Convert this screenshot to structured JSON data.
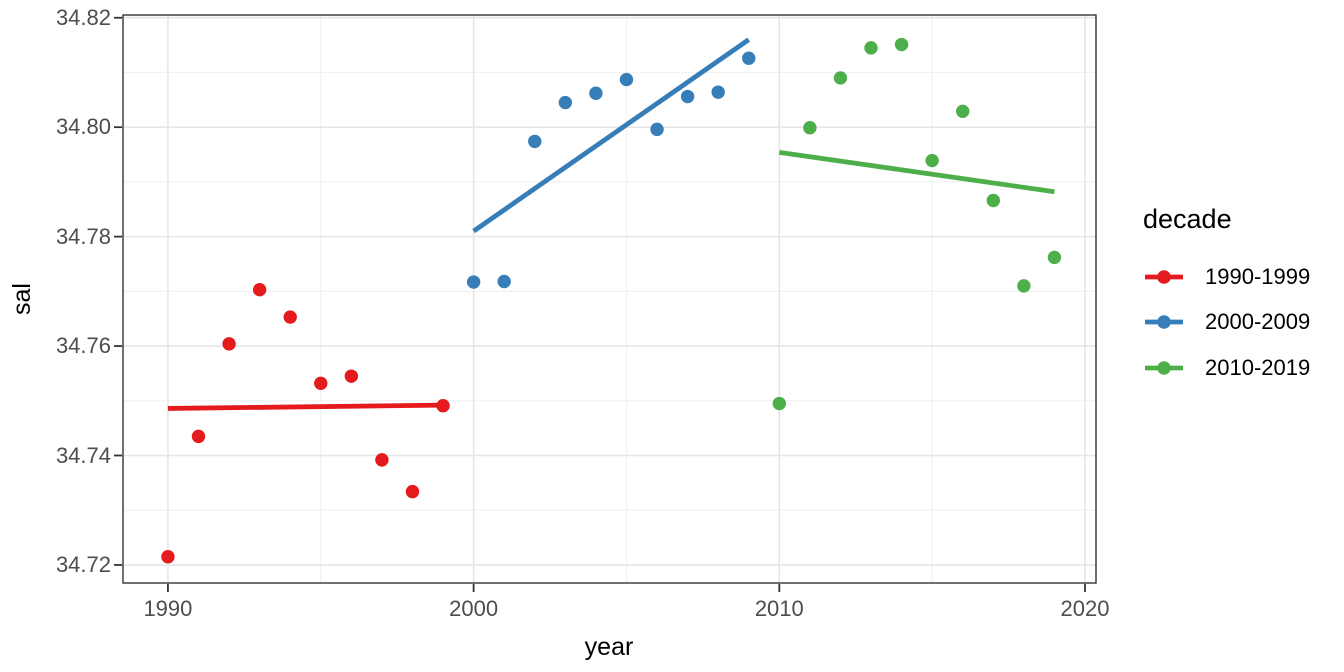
{
  "background": "#ffffff",
  "colors": {
    "axis_text": "#4d4d4d",
    "axis_title": "#000000",
    "grid_major": "#e6e6e6",
    "grid_minor": "#f2f2f2",
    "panel_border": "#343434",
    "tick_mark": "#333333",
    "series_red": "#E41A1C",
    "series_blue": "#377EB8",
    "series_green": "#4DAF4A"
  },
  "chart_data": {
    "type": "scatter",
    "title": "",
    "xlabel": "year",
    "ylabel": "sal",
    "legend_title": "decade",
    "legend_position": "right",
    "grid": true,
    "xlim": [
      1988.53,
      2020.36
    ],
    "ylim": [
      34.7167,
      34.8205
    ],
    "x_ticks": {
      "values": [
        1990,
        2000,
        2010,
        2020
      ],
      "labels": [
        "1990",
        "2000",
        "2010",
        "2020"
      ]
    },
    "y_ticks": {
      "values": [
        34.72,
        34.74,
        34.76,
        34.78,
        34.8,
        34.82
      ],
      "labels": [
        "34.72",
        "34.74",
        "34.76",
        "34.78",
        "34.80",
        "34.82"
      ]
    },
    "x_minor": [
      1995,
      2005,
      2015
    ],
    "y_minor": [
      34.73,
      34.75,
      34.77,
      34.79,
      34.81
    ],
    "series": [
      {
        "name": "1990-1999",
        "color": "#E41A1C",
        "x": [
          1990,
          1991,
          1992,
          1993,
          1994,
          1995,
          1996,
          1997,
          1998,
          1999
        ],
        "y": [
          34.7215,
          34.7435,
          34.7604,
          34.7703,
          34.7653,
          34.7532,
          34.7545,
          34.7392,
          34.7334,
          34.7491
        ],
        "trend": {
          "x1": 1990,
          "y1": 34.7486,
          "x2": 1999,
          "y2": 34.7492
        }
      },
      {
        "name": "2000-2009",
        "color": "#377EB8",
        "x": [
          2000,
          2001,
          2002,
          2003,
          2004,
          2005,
          2006,
          2007,
          2008,
          2009
        ],
        "y": [
          34.7717,
          34.7718,
          34.7974,
          34.8045,
          34.8062,
          34.8087,
          34.7996,
          34.8056,
          34.8064,
          34.8126
        ],
        "trend": {
          "x1": 2000,
          "y1": 34.781,
          "x2": 2009,
          "y2": 34.816
        }
      },
      {
        "name": "2010-2019",
        "color": "#4DAF4A",
        "x": [
          2010,
          2011,
          2012,
          2013,
          2014,
          2015,
          2016,
          2017,
          2018,
          2019
        ],
        "y": [
          34.7495,
          34.7999,
          34.809,
          34.8145,
          34.8151,
          34.7939,
          34.8029,
          34.7866,
          34.771,
          34.7762
        ],
        "trend": {
          "x1": 2010,
          "y1": 34.7954,
          "x2": 2019,
          "y2": 34.7882
        }
      }
    ]
  }
}
